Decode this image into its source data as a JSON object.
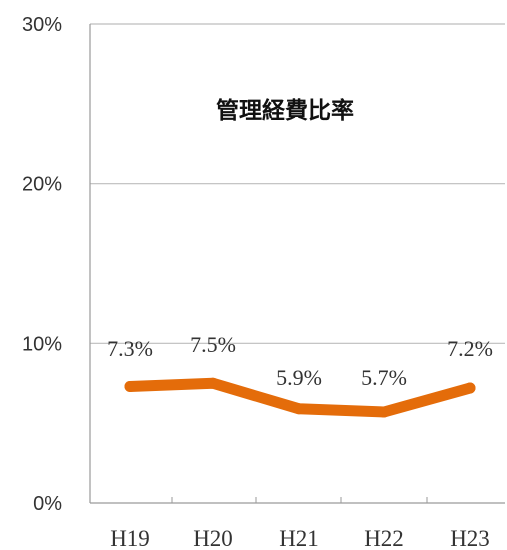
{
  "chart_data": {
    "type": "line",
    "title": "管理経費比率",
    "categories": [
      "H19",
      "H20",
      "H21",
      "H22",
      "H23"
    ],
    "series": [
      {
        "values": [
          7.3,
          7.5,
          5.9,
          5.7,
          7.2
        ],
        "labels": [
          "7.3%",
          "7.5%",
          "5.9%",
          "5.7%",
          "7.2%"
        ],
        "color": "#e46c0a"
      }
    ],
    "ylim": [
      0,
      30
    ],
    "yticks": [
      0,
      10,
      20,
      30
    ],
    "ytick_labels": [
      "0%",
      "10%",
      "20%",
      "30%"
    ],
    "grid": true,
    "legend": "none",
    "xlabel": "",
    "ylabel": ""
  }
}
